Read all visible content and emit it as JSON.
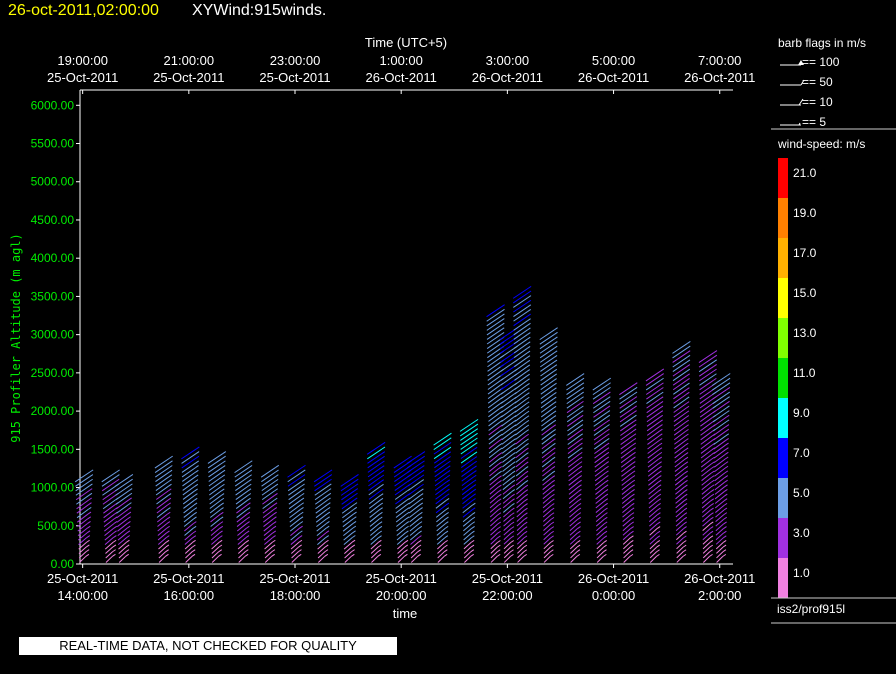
{
  "header": {
    "date": "26-oct-2011,02:00:00",
    "product": "XYWind:915winds."
  },
  "chart_data": {
    "type": "wind-barb time-height",
    "top_axis_title": "Time (UTC+5)",
    "top_ticks": [
      {
        "time": "19:00:00",
        "date": "25-Oct-2011"
      },
      {
        "time": "21:00:00",
        "date": "25-Oct-2011"
      },
      {
        "time": "23:00:00",
        "date": "25-Oct-2011"
      },
      {
        "time": "1:00:00",
        "date": "26-Oct-2011"
      },
      {
        "time": "3:00:00",
        "date": "26-Oct-2011"
      },
      {
        "time": "5:00:00",
        "date": "26-Oct-2011"
      },
      {
        "time": "7:00:00",
        "date": "26-Oct-2011"
      }
    ],
    "bottom_ticks": [
      {
        "date": "25-Oct-2011",
        "time": "14:00:00"
      },
      {
        "date": "25-Oct-2011",
        "time": "16:00:00"
      },
      {
        "date": "25-Oct-2011",
        "time": "18:00:00"
      },
      {
        "date": "25-Oct-2011",
        "time": "20:00:00"
      },
      {
        "date": "25-Oct-2011",
        "time": "22:00:00"
      },
      {
        "date": "26-Oct-2011",
        "time": "0:00:00"
      },
      {
        "date": "26-Oct-2011",
        "time": "2:00:00"
      }
    ],
    "xlabel": "time",
    "ylabel": "915 Profiler Altitude (m agl)",
    "ylim": [
      0,
      6200
    ],
    "y_ticks": [
      "0.00",
      "500.00",
      "1000.00",
      "1500.00",
      "2000.00",
      "2500.00",
      "3000.00",
      "3500.00",
      "4000.00",
      "4500.00",
      "5000.00",
      "5500.00",
      "6000.00"
    ],
    "y_tick_values": [
      0,
      500,
      1000,
      1500,
      2000,
      2500,
      3000,
      3500,
      4000,
      4500,
      5000,
      5500,
      6000
    ],
    "x_range_hours": [
      13.95,
      26.25
    ],
    "bottom_tick_hours": [
      14,
      16,
      18,
      20,
      22,
      24,
      26
    ],
    "profiles": [
      {
        "hour": 14.0,
        "top": 1150,
        "speed": 3.4
      },
      {
        "hour": 14.5,
        "top": 1150,
        "speed": 3.2
      },
      {
        "hour": 14.75,
        "top": 1100,
        "speed": 3.5
      },
      {
        "hour": 15.5,
        "top": 1350,
        "speed": 3.6
      },
      {
        "hour": 16.0,
        "top": 1450,
        "speed": 4.6
      },
      {
        "hour": 16.5,
        "top": 1400,
        "speed": 4.2
      },
      {
        "hour": 17.0,
        "top": 1300,
        "speed": 3.8
      },
      {
        "hour": 17.5,
        "top": 1250,
        "speed": 3.6
      },
      {
        "hour": 18.0,
        "top": 1200,
        "speed": 4.5
      },
      {
        "hour": 18.5,
        "top": 1150,
        "speed": 4.8
      },
      {
        "hour": 19.0,
        "top": 1100,
        "speed": 5.4
      },
      {
        "hour": 19.5,
        "top": 1500,
        "speed": 5.8
      },
      {
        "hour": 20.0,
        "top": 1350,
        "speed": 5.6
      },
      {
        "hour": 20.25,
        "top": 1400,
        "speed": 5.2
      },
      {
        "hour": 20.75,
        "top": 1650,
        "speed": 6.2
      },
      {
        "hour": 21.25,
        "top": 1800,
        "speed": 6.8
      },
      {
        "hour": 21.75,
        "top": 3300,
        "speed": 4.2
      },
      {
        "hour": 22.0,
        "top": 3000,
        "speed": 4.8
      },
      {
        "hour": 22.25,
        "top": 3550,
        "speed": 4.4
      },
      {
        "hour": 22.75,
        "top": 3050,
        "speed": 4.0
      },
      {
        "hour": 23.25,
        "top": 2450,
        "speed": 3.4
      },
      {
        "hour": 23.75,
        "top": 2350,
        "speed": 3.2
      },
      {
        "hour": 24.25,
        "top": 2300,
        "speed": 3.0
      },
      {
        "hour": 24.75,
        "top": 2500,
        "speed": 2.8
      },
      {
        "hour": 25.25,
        "top": 2850,
        "speed": 3.0
      },
      {
        "hour": 25.75,
        "top": 2700,
        "speed": 2.8
      },
      {
        "hour": 26.0,
        "top": 2400,
        "speed": 3.2
      }
    ]
  },
  "legend": {
    "barb_title": "barb flags in m/s",
    "barbs": [
      "== 100",
      "== 50",
      "== 10",
      "== 5"
    ],
    "speed_title": "wind-speed: m/s",
    "speed_labels": [
      "21.0",
      "19.0",
      "17.0",
      "15.0",
      "13.0",
      "11.0",
      "9.0",
      "7.0",
      "5.0",
      "3.0",
      "1.0"
    ],
    "speed_colors": [
      "#ff0000",
      "#ff8000",
      "#ffb000",
      "#ffff00",
      "#80ff00",
      "#00e000",
      "#00ffff",
      "#0000ff",
      "#6c9ee6",
      "#a030e0",
      "#f080e0"
    ],
    "speed_values": [
      21,
      19,
      17,
      15,
      13,
      11,
      9,
      7,
      5,
      3,
      1
    ],
    "station": "iss2/prof915l"
  },
  "qc_notice": "REAL-TIME DATA, NOT CHECKED FOR QUALITY"
}
